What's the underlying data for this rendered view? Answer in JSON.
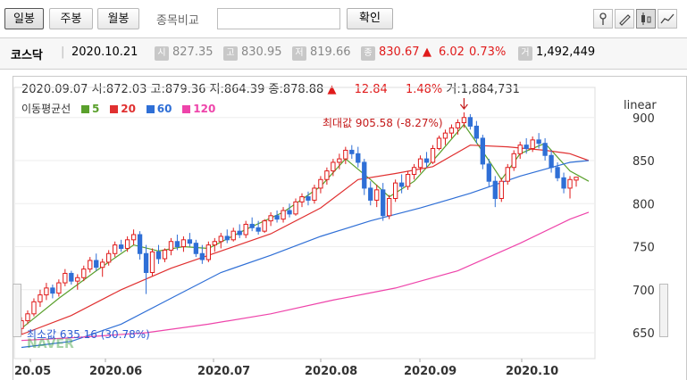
{
  "toolbar": {
    "tabs": [
      "일봉",
      "주봉",
      "월봉"
    ],
    "compare_label": "종목비교",
    "compare_value": "",
    "confirm_label": "확인"
  },
  "quote": {
    "name": "코스닥",
    "date": "2020.10.21",
    "open_badge": "시",
    "open": "827.35",
    "high_badge": "고",
    "high": "830.95",
    "low_badge": "저",
    "low": "819.66",
    "close_badge": "종",
    "close": "830.67",
    "arrow": "▲",
    "change": "6.02",
    "pct": "0.73%",
    "volume_badge": "거",
    "volume": "1,492,449"
  },
  "ohlc_line": {
    "date": "2020.09.07",
    "open": "시:872.03",
    "high": "고:879.36",
    "low": "저:864.39",
    "close": "종:878.88",
    "arrow": "▲",
    "change": "12.84",
    "pct": "1.48%",
    "volume": "거:1,884,731"
  },
  "legend": {
    "label": "이동평균선",
    "items": [
      {
        "name": "5",
        "color": "#5aa02c"
      },
      {
        "name": "20",
        "color": "#e03030"
      },
      {
        "name": "60",
        "color": "#2f6fd6"
      },
      {
        "name": "120",
        "color": "#ee44aa"
      }
    ]
  },
  "scale_label": "linear",
  "annotations": {
    "max": "최대값 905.58 (-8.27%)",
    "min": "최소값 635.16 (30.78%)"
  },
  "watermark": "NAVER",
  "chart_data": {
    "type": "candlestick",
    "y_ticks": [
      "900",
      "850",
      "800",
      "750",
      "700",
      "650"
    ],
    "x_ticks": [
      "20.05",
      "2020.06",
      "2020.07",
      "2020.08",
      "2020.09",
      "2020.10"
    ],
    "ylim": [
      620,
      935
    ],
    "colors": {
      "up": "#e01b1b",
      "down": "#2f6fd6"
    },
    "candles": [
      {
        "o": 655,
        "h": 668,
        "l": 648,
        "c": 664
      },
      {
        "o": 664,
        "h": 676,
        "l": 660,
        "c": 672
      },
      {
        "o": 672,
        "h": 690,
        "l": 669,
        "c": 686
      },
      {
        "o": 686,
        "h": 700,
        "l": 680,
        "c": 694
      },
      {
        "o": 694,
        "h": 708,
        "l": 688,
        "c": 702
      },
      {
        "o": 702,
        "h": 706,
        "l": 690,
        "c": 696
      },
      {
        "o": 696,
        "h": 712,
        "l": 692,
        "c": 708
      },
      {
        "o": 708,
        "h": 724,
        "l": 704,
        "c": 719
      },
      {
        "o": 719,
        "h": 722,
        "l": 706,
        "c": 710
      },
      {
        "o": 710,
        "h": 718,
        "l": 700,
        "c": 714
      },
      {
        "o": 714,
        "h": 728,
        "l": 710,
        "c": 724
      },
      {
        "o": 724,
        "h": 738,
        "l": 720,
        "c": 734
      },
      {
        "o": 734,
        "h": 742,
        "l": 722,
        "c": 726
      },
      {
        "o": 726,
        "h": 736,
        "l": 715,
        "c": 732
      },
      {
        "o": 732,
        "h": 746,
        "l": 728,
        "c": 742
      },
      {
        "o": 742,
        "h": 756,
        "l": 738,
        "c": 752
      },
      {
        "o": 752,
        "h": 758,
        "l": 744,
        "c": 748
      },
      {
        "o": 748,
        "h": 762,
        "l": 744,
        "c": 758
      },
      {
        "o": 758,
        "h": 770,
        "l": 752,
        "c": 764
      },
      {
        "o": 764,
        "h": 768,
        "l": 735,
        "c": 742
      },
      {
        "o": 742,
        "h": 752,
        "l": 695,
        "c": 720
      },
      {
        "o": 720,
        "h": 748,
        "l": 716,
        "c": 744
      },
      {
        "o": 744,
        "h": 752,
        "l": 730,
        "c": 736
      },
      {
        "o": 736,
        "h": 748,
        "l": 732,
        "c": 746
      },
      {
        "o": 746,
        "h": 760,
        "l": 740,
        "c": 756
      },
      {
        "o": 756,
        "h": 764,
        "l": 746,
        "c": 750
      },
      {
        "o": 750,
        "h": 762,
        "l": 744,
        "c": 758
      },
      {
        "o": 758,
        "h": 766,
        "l": 750,
        "c": 754
      },
      {
        "o": 754,
        "h": 758,
        "l": 738,
        "c": 742
      },
      {
        "o": 742,
        "h": 752,
        "l": 730,
        "c": 735
      },
      {
        "o": 735,
        "h": 756,
        "l": 732,
        "c": 752
      },
      {
        "o": 752,
        "h": 760,
        "l": 744,
        "c": 756
      },
      {
        "o": 756,
        "h": 766,
        "l": 748,
        "c": 762
      },
      {
        "o": 762,
        "h": 770,
        "l": 754,
        "c": 758
      },
      {
        "o": 758,
        "h": 772,
        "l": 756,
        "c": 768
      },
      {
        "o": 768,
        "h": 776,
        "l": 760,
        "c": 764
      },
      {
        "o": 764,
        "h": 780,
        "l": 760,
        "c": 776
      },
      {
        "o": 776,
        "h": 784,
        "l": 768,
        "c": 772
      },
      {
        "o": 772,
        "h": 780,
        "l": 764,
        "c": 768
      },
      {
        "o": 768,
        "h": 782,
        "l": 766,
        "c": 780
      },
      {
        "o": 780,
        "h": 790,
        "l": 774,
        "c": 786
      },
      {
        "o": 786,
        "h": 792,
        "l": 778,
        "c": 782
      },
      {
        "o": 782,
        "h": 796,
        "l": 778,
        "c": 792
      },
      {
        "o": 792,
        "h": 800,
        "l": 784,
        "c": 788
      },
      {
        "o": 788,
        "h": 806,
        "l": 786,
        "c": 802
      },
      {
        "o": 802,
        "h": 812,
        "l": 796,
        "c": 808
      },
      {
        "o": 808,
        "h": 814,
        "l": 798,
        "c": 804
      },
      {
        "o": 804,
        "h": 822,
        "l": 800,
        "c": 818
      },
      {
        "o": 818,
        "h": 832,
        "l": 812,
        "c": 828
      },
      {
        "o": 828,
        "h": 842,
        "l": 822,
        "c": 838
      },
      {
        "o": 838,
        "h": 852,
        "l": 832,
        "c": 848
      },
      {
        "o": 848,
        "h": 858,
        "l": 840,
        "c": 852
      },
      {
        "o": 852,
        "h": 866,
        "l": 846,
        "c": 862
      },
      {
        "o": 862,
        "h": 868,
        "l": 852,
        "c": 858
      },
      {
        "o": 858,
        "h": 866,
        "l": 842,
        "c": 848
      },
      {
        "o": 848,
        "h": 852,
        "l": 810,
        "c": 818
      },
      {
        "o": 818,
        "h": 826,
        "l": 798,
        "c": 804
      },
      {
        "o": 804,
        "h": 822,
        "l": 796,
        "c": 816
      },
      {
        "o": 816,
        "h": 824,
        "l": 780,
        "c": 786
      },
      {
        "o": 786,
        "h": 810,
        "l": 782,
        "c": 806
      },
      {
        "o": 806,
        "h": 828,
        "l": 802,
        "c": 824
      },
      {
        "o": 824,
        "h": 834,
        "l": 812,
        "c": 820
      },
      {
        "o": 820,
        "h": 838,
        "l": 816,
        "c": 834
      },
      {
        "o": 834,
        "h": 846,
        "l": 828,
        "c": 842
      },
      {
        "o": 842,
        "h": 856,
        "l": 836,
        "c": 852
      },
      {
        "o": 852,
        "h": 860,
        "l": 842,
        "c": 848
      },
      {
        "o": 848,
        "h": 868,
        "l": 846,
        "c": 864
      },
      {
        "o": 864,
        "h": 879,
        "l": 862,
        "c": 876
      },
      {
        "o": 876,
        "h": 886,
        "l": 868,
        "c": 882
      },
      {
        "o": 882,
        "h": 892,
        "l": 876,
        "c": 888
      },
      {
        "o": 888,
        "h": 898,
        "l": 880,
        "c": 894
      },
      {
        "o": 894,
        "h": 906,
        "l": 888,
        "c": 900
      },
      {
        "o": 900,
        "h": 904,
        "l": 886,
        "c": 890
      },
      {
        "o": 890,
        "h": 896,
        "l": 870,
        "c": 876
      },
      {
        "o": 876,
        "h": 880,
        "l": 840,
        "c": 846
      },
      {
        "o": 846,
        "h": 852,
        "l": 820,
        "c": 826
      },
      {
        "o": 826,
        "h": 832,
        "l": 796,
        "c": 806
      },
      {
        "o": 806,
        "h": 830,
        "l": 802,
        "c": 826
      },
      {
        "o": 826,
        "h": 846,
        "l": 822,
        "c": 842
      },
      {
        "o": 842,
        "h": 862,
        "l": 838,
        "c": 858
      },
      {
        "o": 858,
        "h": 872,
        "l": 852,
        "c": 868
      },
      {
        "o": 868,
        "h": 876,
        "l": 858,
        "c": 864
      },
      {
        "o": 864,
        "h": 878,
        "l": 860,
        "c": 874
      },
      {
        "o": 874,
        "h": 882,
        "l": 864,
        "c": 870
      },
      {
        "o": 870,
        "h": 876,
        "l": 850,
        "c": 856
      },
      {
        "o": 856,
        "h": 862,
        "l": 836,
        "c": 842
      },
      {
        "o": 842,
        "h": 848,
        "l": 826,
        "c": 830
      },
      {
        "o": 830,
        "h": 836,
        "l": 812,
        "c": 818
      },
      {
        "o": 818,
        "h": 832,
        "l": 806,
        "c": 828
      },
      {
        "o": 827.35,
        "h": 830.95,
        "l": 819.66,
        "c": 830.67
      }
    ],
    "ma_series": [
      {
        "name": "5",
        "color": "#5aa02c",
        "values": [
          [
            0,
            655
          ],
          [
            6,
            690
          ],
          [
            12,
            722
          ],
          [
            18,
            752
          ],
          [
            22,
            745
          ],
          [
            26,
            750
          ],
          [
            30,
            748
          ],
          [
            36,
            770
          ],
          [
            42,
            790
          ],
          [
            48,
            820
          ],
          [
            52,
            852
          ],
          [
            56,
            828
          ],
          [
            59,
            808
          ],
          [
            63,
            826
          ],
          [
            67,
            858
          ],
          [
            71,
            892
          ],
          [
            75,
            850
          ],
          [
            77,
            828
          ],
          [
            80,
            858
          ],
          [
            84,
            870
          ],
          [
            88,
            838
          ],
          [
            91,
            826
          ]
        ]
      },
      {
        "name": "20",
        "color": "#e03030",
        "values": [
          [
            0,
            648
          ],
          [
            8,
            670
          ],
          [
            16,
            700
          ],
          [
            24,
            725
          ],
          [
            32,
            745
          ],
          [
            40,
            765
          ],
          [
            48,
            795
          ],
          [
            54,
            828
          ],
          [
            60,
            835
          ],
          [
            66,
            843
          ],
          [
            72,
            868
          ],
          [
            78,
            866
          ],
          [
            84,
            862
          ],
          [
            88,
            858
          ],
          [
            91,
            850
          ]
        ]
      },
      {
        "name": "60",
        "color": "#2f6fd6",
        "values": [
          [
            0,
            633
          ],
          [
            8,
            640
          ],
          [
            16,
            660
          ],
          [
            24,
            690
          ],
          [
            32,
            720
          ],
          [
            40,
            740
          ],
          [
            48,
            762
          ],
          [
            56,
            780
          ],
          [
            64,
            795
          ],
          [
            72,
            812
          ],
          [
            80,
            832
          ],
          [
            88,
            848
          ],
          [
            91,
            850
          ]
        ]
      },
      {
        "name": "120",
        "color": "#ee44aa",
        "values": [
          [
            0,
            641
          ],
          [
            10,
            645
          ],
          [
            20,
            650
          ],
          [
            30,
            660
          ],
          [
            40,
            672
          ],
          [
            50,
            688
          ],
          [
            60,
            702
          ],
          [
            70,
            722
          ],
          [
            80,
            754
          ],
          [
            88,
            782
          ],
          [
            91,
            790
          ]
        ]
      }
    ]
  }
}
